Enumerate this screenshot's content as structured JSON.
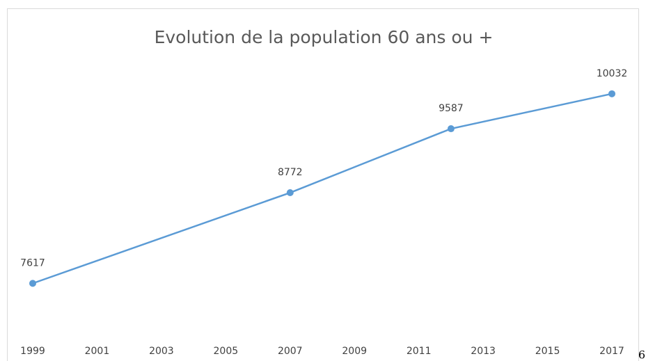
{
  "chart_data": {
    "type": "line",
    "title": "Evolution de la population 60 ans ou +",
    "x": [
      1999,
      2007,
      2012,
      2017
    ],
    "series": [
      {
        "name": null,
        "color": "#5b9bd5",
        "values": [
          7617,
          8772,
          9587,
          10032
        ]
      }
    ],
    "xlim": [
      1999,
      2017
    ],
    "xticks": [
      1999,
      2001,
      2003,
      2005,
      2007,
      2009,
      2011,
      2013,
      2015,
      2017
    ],
    "ylim": [
      7000,
      10500
    ]
  },
  "page_number": "6"
}
